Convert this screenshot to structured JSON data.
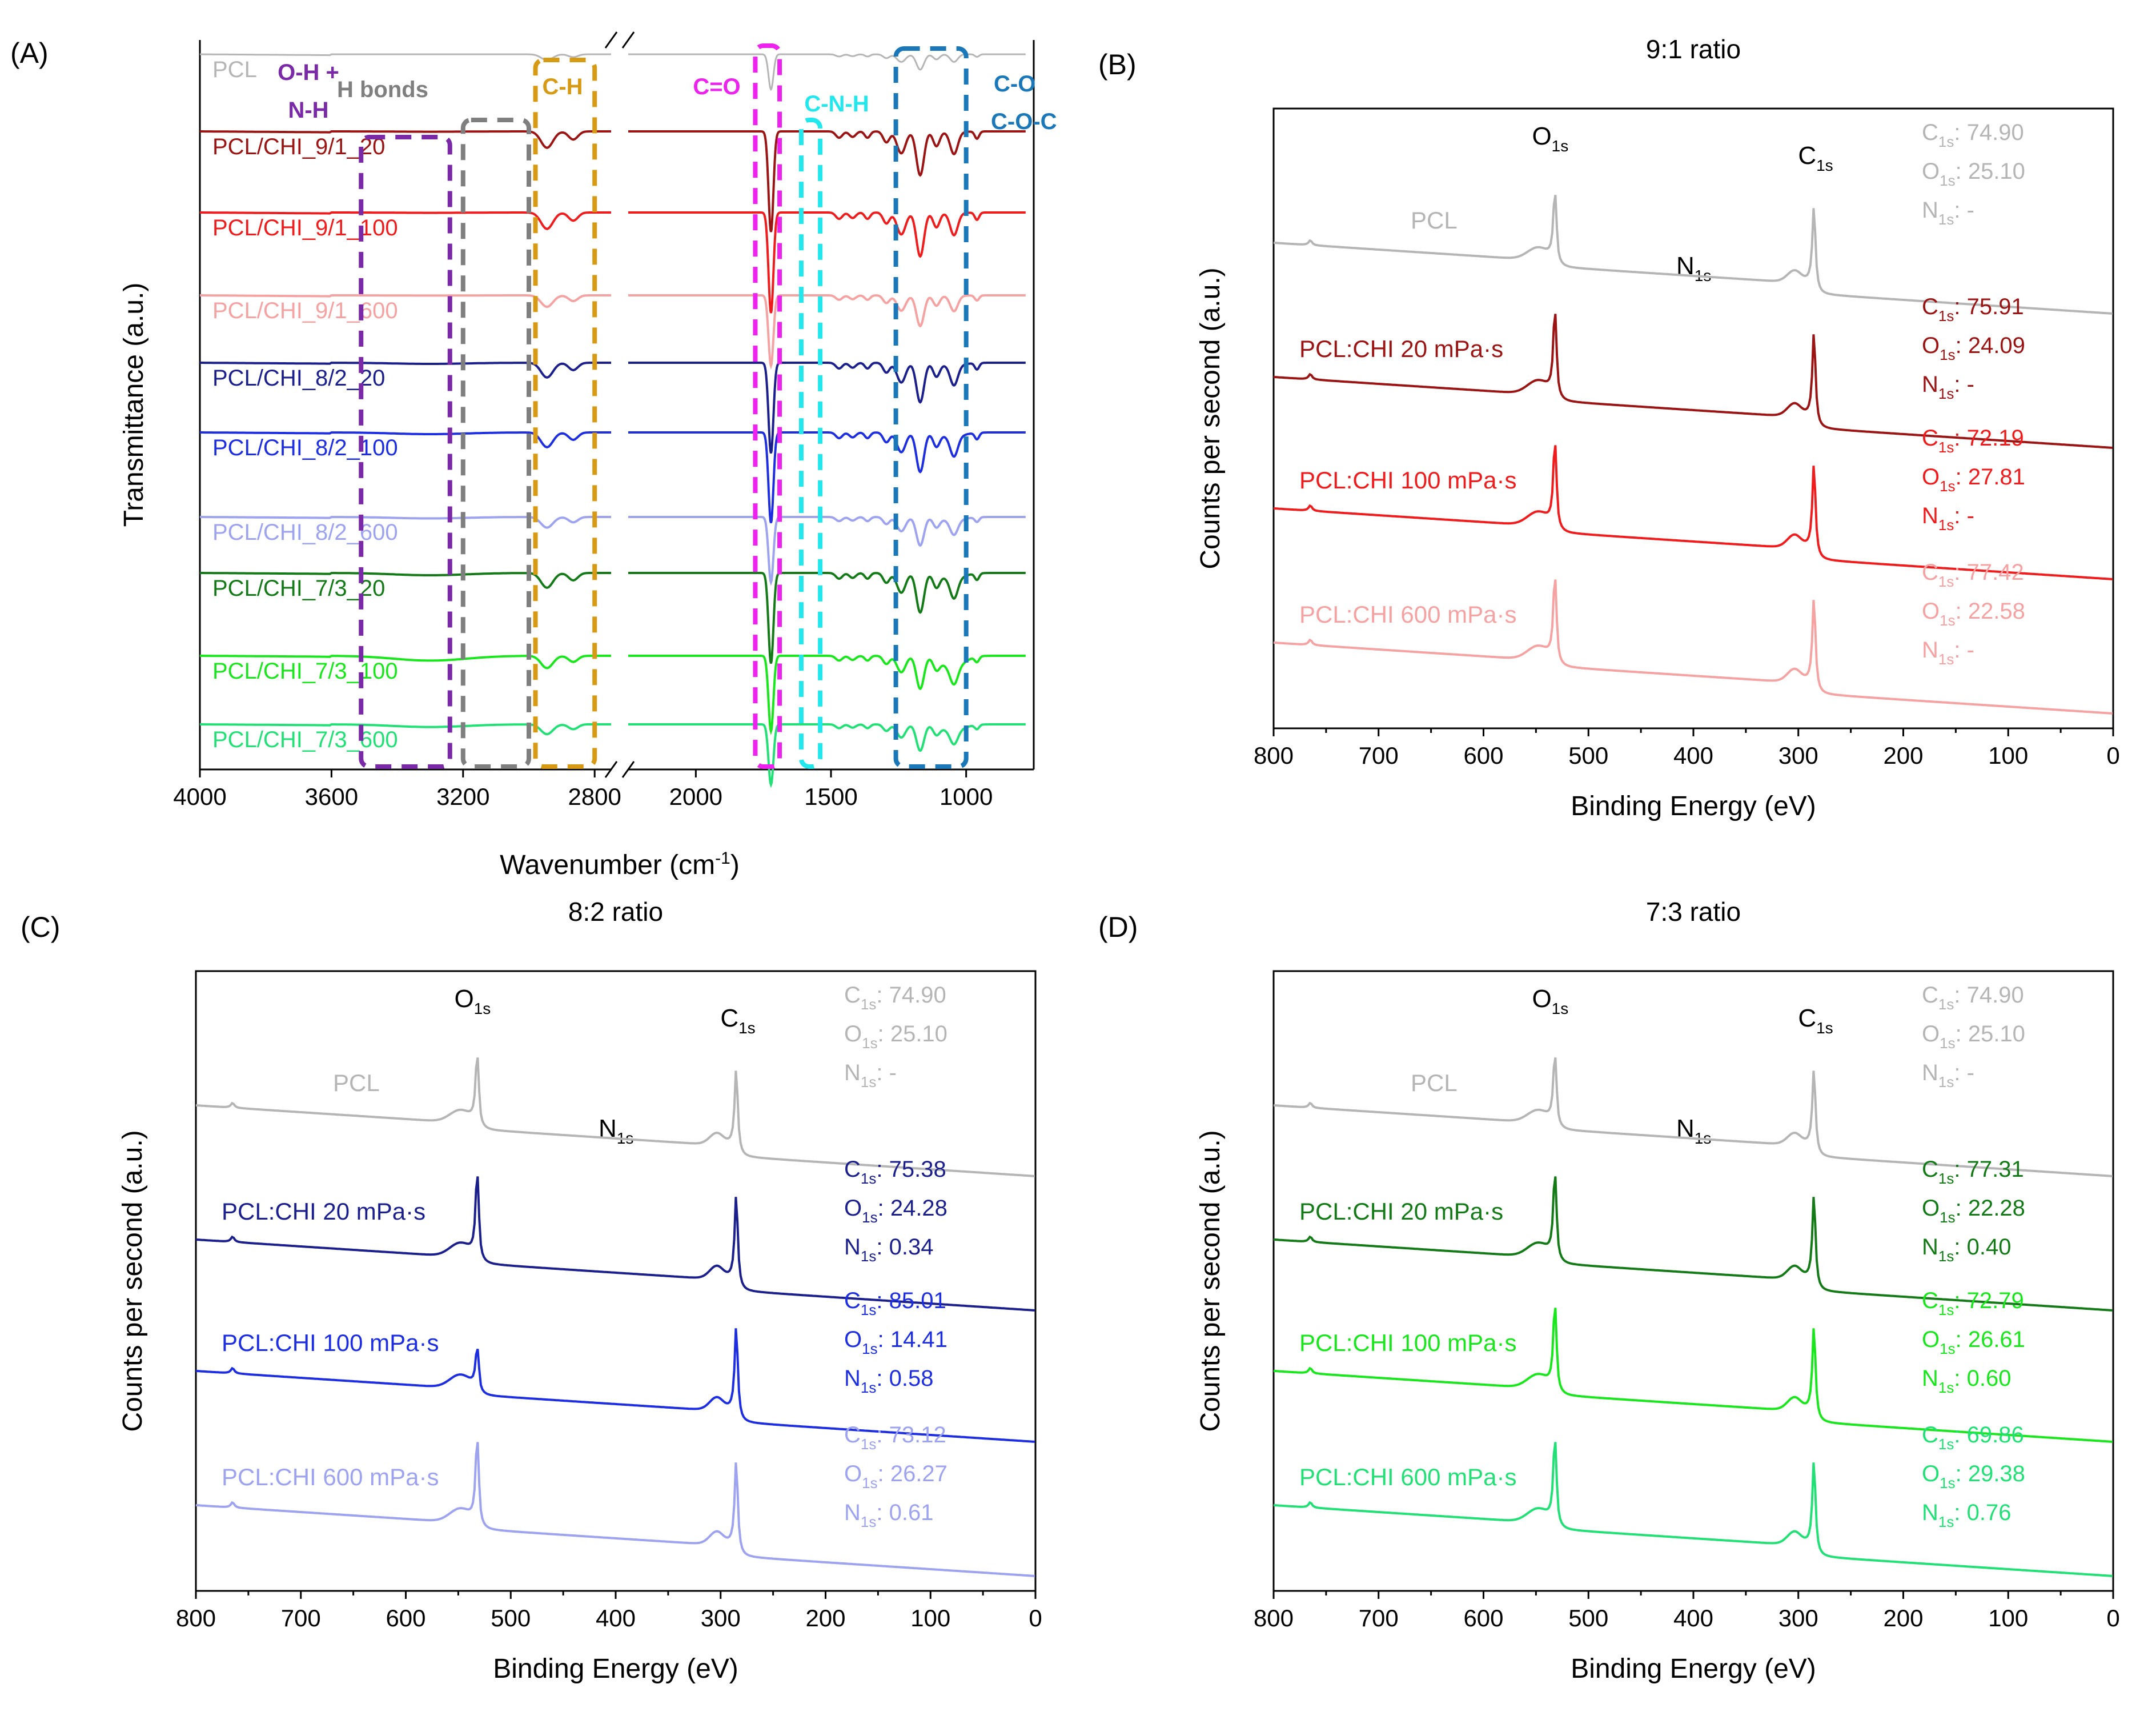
{
  "figure": {
    "panelA": {
      "letter": "(A)",
      "xlabel": "Wavenumber (cm",
      "xlabel_sup": "-1",
      "xlabel_close": ")",
      "ylabel": "Transmittance (a.u.)",
      "xticks": [
        {
          "v": 4000,
          "label": "4000"
        },
        {
          "v": 3600,
          "label": "3600"
        },
        {
          "v": 3200,
          "label": "3200"
        },
        {
          "v": 2800,
          "label": "2800"
        },
        {
          "v": 2000,
          "label": "2000"
        },
        {
          "v": 1500,
          "label": "1500"
        },
        {
          "v": 1000,
          "label": "1000"
        }
      ],
      "regions": [
        {
          "name": "oh-nh",
          "label": "O-H +",
          "label2": "N-H",
          "from": 3510,
          "to": 3240,
          "color": "#7a2aa6"
        },
        {
          "name": "h-bonds",
          "label": "H bonds",
          "label2": "",
          "from": 3200,
          "to": 3000,
          "color": "#7f7f7f"
        },
        {
          "name": "c-h",
          "label": "C-H",
          "label2": "",
          "from": 2980,
          "to": 2800,
          "color": "#d79a14"
        },
        {
          "name": "c-o-double",
          "label": "C=O",
          "label2": "",
          "from": 1780,
          "to": 1690,
          "color": "#ee22ee"
        },
        {
          "name": "c-n-h",
          "label": "C-N-H",
          "label2": "",
          "from": 1610,
          "to": 1540,
          "color": "#22e8ee"
        },
        {
          "name": "c-o",
          "label": "C-O",
          "label2": "C-O-C",
          "from": 1260,
          "to": 1000,
          "color": "#1a78b8"
        }
      ],
      "series": [
        {
          "name": "PCL",
          "color": "#b5b5b5"
        },
        {
          "name": "PCL/CHI_9/1_20",
          "color": "#9b1414"
        },
        {
          "name": "PCL/CHI_9/1_100",
          "color": "#ee1c1c"
        },
        {
          "name": "PCL/CHI_9/1_600",
          "color": "#f4a2a2"
        },
        {
          "name": "PCL/CHI_8/2_20",
          "color": "#1a1f8c"
        },
        {
          "name": "PCL/CHI_8/2_100",
          "color": "#1c2ee0"
        },
        {
          "name": "PCL/CHI_8/2_600",
          "color": "#9da3ee"
        },
        {
          "name": "PCL/CHI_7/3_20",
          "color": "#137a17"
        },
        {
          "name": "PCL/CHI_7/3_100",
          "color": "#19e61c"
        },
        {
          "name": "PCL/CHI_7/3_600",
          "color": "#22e076"
        }
      ]
    },
    "panelB": {
      "letter": "(B)",
      "title": "9:1 ratio",
      "samples": [
        {
          "label": "PCL",
          "color": "#b5b5b5",
          "C": "74.90",
          "O": "25.10",
          "N": "-"
        },
        {
          "label": "PCL:CHI 20 mPa·s",
          "color": "#9b1414",
          "C": "75.91",
          "O": "24.09",
          "N": "-"
        },
        {
          "label": "PCL:CHI 100 mPa·s",
          "color": "#ee1c1c",
          "C": "72.19",
          "O": "27.81",
          "N": "-"
        },
        {
          "label": "PCL:CHI 600 mPa·s",
          "color": "#f4a2a2",
          "C": "77.42",
          "O": "22.58",
          "N": "-"
        }
      ]
    },
    "panelC": {
      "letter": "(C)",
      "title": "8:2 ratio",
      "samples": [
        {
          "label": "PCL",
          "color": "#b5b5b5",
          "C": "74.90",
          "O": "25.10",
          "N": "-"
        },
        {
          "label": "PCL:CHI 20 mPa·s",
          "color": "#1a1f8c",
          "C": "75.38",
          "O": "24.28",
          "N": "0.34"
        },
        {
          "label": "PCL:CHI 100 mPa·s",
          "color": "#1c2ee0",
          "C": "85.01",
          "O": "14.41",
          "N": "0.58"
        },
        {
          "label": "PCL:CHI 600 mPa·s",
          "color": "#9da3ee",
          "C": "73.12",
          "O": "26.27",
          "N": "0.61"
        }
      ]
    },
    "panelD": {
      "letter": "(D)",
      "title": "7:3 ratio",
      "samples": [
        {
          "label": "PCL",
          "color": "#b5b5b5",
          "C": "74.90",
          "O": "25.10",
          "N": "-"
        },
        {
          "label": "PCL:CHI 20 mPa·s",
          "color": "#137a17",
          "C": "77.31",
          "O": "22.28",
          "N": "0.40"
        },
        {
          "label": "PCL:CHI 100 mPa·s",
          "color": "#19e61c",
          "C": "72.79",
          "O": "26.61",
          "N": "0.60"
        },
        {
          "label": "PCL:CHI 600 mPa·s",
          "color": "#22e076",
          "C": "69.86",
          "O": "29.38",
          "N": "0.76"
        }
      ]
    },
    "xps_axes": {
      "xlabel": "Binding Energy (eV)",
      "ylabel": "Counts per second (a.u.)",
      "xlim": [
        800,
        0
      ],
      "xticks": [
        "800",
        "700",
        "600",
        "500",
        "400",
        "300",
        "200",
        "100",
        "0"
      ],
      "peak_O": "O",
      "peak_C": "C",
      "peak_N": "N",
      "sub": "1s"
    }
  },
  "chart_data": [
    {
      "type": "line",
      "title": "",
      "xlabel": "Wavenumber (cm-1)",
      "ylabel": "Transmittance (a.u.)",
      "xlim": [
        4000,
        750
      ],
      "axis_break": [
        2700,
        2300
      ],
      "series": [
        {
          "name": "PCL"
        },
        {
          "name": "PCL/CHI_9/1_20"
        },
        {
          "name": "PCL/CHI_9/1_100"
        },
        {
          "name": "PCL/CHI_9/1_600"
        },
        {
          "name": "PCL/CHI_8/2_20"
        },
        {
          "name": "PCL/CHI_8/2_100"
        },
        {
          "name": "PCL/CHI_8/2_600"
        },
        {
          "name": "PCL/CHI_7/3_20"
        },
        {
          "name": "PCL/CHI_7/3_100"
        },
        {
          "name": "PCL/CHI_7/3_600"
        }
      ],
      "main_bands_cm-1": [
        2945,
        2865,
        1722,
        1240,
        1170,
        1045
      ]
    },
    {
      "type": "line",
      "title": "9:1 ratio",
      "xlabel": "Binding Energy (eV)",
      "ylabel": "Counts per second (a.u.)",
      "xlim": [
        800,
        0
      ],
      "peaks_eV": {
        "O1s": 532,
        "C1s": 285,
        "N1s": 400
      },
      "series": [
        "PCL",
        "PCL:CHI 20 mPa·s",
        "PCL:CHI 100 mPa·s",
        "PCL:CHI 600 mPa·s"
      ]
    },
    {
      "type": "line",
      "title": "8:2 ratio",
      "xlabel": "Binding Energy (eV)",
      "ylabel": "Counts per second (a.u.)",
      "xlim": [
        800,
        0
      ],
      "peaks_eV": {
        "O1s": 532,
        "C1s": 285,
        "N1s": 400
      },
      "series": [
        "PCL",
        "PCL:CHI 20 mPa·s",
        "PCL:CHI 100 mPa·s",
        "PCL:CHI 600 mPa·s"
      ]
    },
    {
      "type": "line",
      "title": "7:3 ratio",
      "xlabel": "Binding Energy (eV)",
      "ylabel": "Counts per second (a.u.)",
      "xlim": [
        800,
        0
      ],
      "peaks_eV": {
        "O1s": 532,
        "C1s": 285,
        "N1s": 400
      },
      "series": [
        "PCL",
        "PCL:CHI 20 mPa·s",
        "PCL:CHI 100 mPa·s",
        "PCL:CHI 600 mPa·s"
      ]
    }
  ]
}
